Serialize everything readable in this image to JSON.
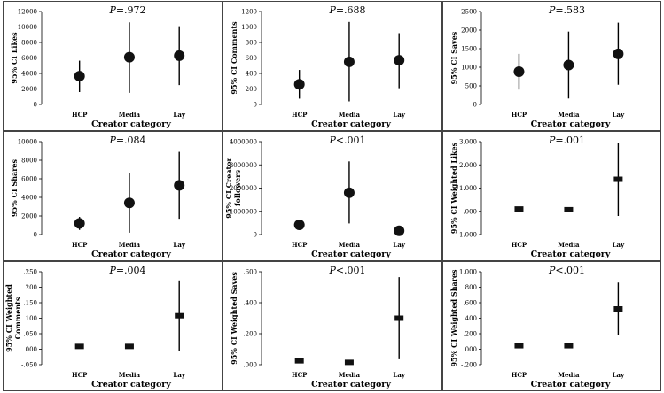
{
  "figure": {
    "layout": "3x3 grid",
    "marker_style_by_panel": [
      "circle",
      "circle",
      "circle",
      "circle",
      "circle",
      "square",
      "square",
      "square",
      "square"
    ]
  },
  "chart_data": [
    {
      "type": "errorbar",
      "p_prefix": "P",
      "p_suffix": "=.972",
      "ylabel": "95% CI Likes",
      "xlabel": "Creator category",
      "categories": [
        "HCP",
        "Media",
        "Lay"
      ],
      "ylim": [
        0,
        12000
      ],
      "yticks": [
        "0",
        "2000",
        "4000",
        "6000",
        "8000",
        "10000",
        "12000"
      ],
      "ytick_values": [
        0,
        2000,
        4000,
        6000,
        8000,
        10000,
        12000
      ],
      "means": [
        3650,
        6100,
        6300
      ],
      "lower": [
        1600,
        1500,
        2500
      ],
      "upper": [
        5650,
        10600,
        10100
      ]
    },
    {
      "type": "errorbar",
      "p_prefix": "P",
      "p_suffix": "=.688",
      "ylabel": "95% CI Comments",
      "xlabel": "Creator category",
      "categories": [
        "HCP",
        "Media",
        "Lay"
      ],
      "ylim": [
        0,
        1200
      ],
      "yticks": [
        "0",
        "200",
        "400",
        "600",
        "800",
        "1000",
        "1200"
      ],
      "ytick_values": [
        0,
        200,
        400,
        600,
        800,
        1000,
        1200
      ],
      "means": [
        260,
        550,
        570
      ],
      "lower": [
        75,
        40,
        210
      ],
      "upper": [
        445,
        1065,
        920
      ]
    },
    {
      "type": "errorbar",
      "p_prefix": "P",
      "p_suffix": "=.583",
      "ylabel": "95% CI Saves",
      "xlabel": "Creator category",
      "categories": [
        "HCP",
        "Media",
        "Lay"
      ],
      "ylim": [
        0,
        2500
      ],
      "yticks": [
        "0",
        "500",
        "1000",
        "1500",
        "2000",
        "2500"
      ],
      "ytick_values": [
        0,
        500,
        1000,
        1500,
        2000,
        2500
      ],
      "means": [
        880,
        1060,
        1360
      ],
      "lower": [
        400,
        160,
        530
      ],
      "upper": [
        1360,
        1960,
        2200
      ]
    },
    {
      "type": "errorbar",
      "p_prefix": "P",
      "p_suffix": "=.084",
      "ylabel": "95% CI Shares",
      "xlabel": "Creator category",
      "categories": [
        "HCP",
        "Media",
        "Lay"
      ],
      "ylim": [
        0,
        10000
      ],
      "yticks": [
        "0",
        "2000",
        "4000",
        "6000",
        "8000",
        "10000"
      ],
      "ytick_values": [
        0,
        2000,
        4000,
        6000,
        8000,
        10000
      ],
      "means": [
        1200,
        3400,
        5300
      ],
      "lower": [
        500,
        200,
        1700
      ],
      "upper": [
        1900,
        6600,
        8900
      ]
    },
    {
      "type": "errorbar",
      "p_prefix": "P",
      "p_suffix": "<.001",
      "ylabel": "95% CI Creator followers",
      "xlabel": "Creator category",
      "categories": [
        "HCP",
        "Media",
        "Lay"
      ],
      "ylim": [
        0,
        4000000
      ],
      "yticks": [
        "0",
        "1000000",
        "2000000",
        "3000000",
        "4000000"
      ],
      "ytick_values": [
        0,
        1000000,
        2000000,
        3000000,
        4000000
      ],
      "means": [
        420000,
        1800000,
        160000
      ],
      "lower": [
        280000,
        480000,
        90000
      ],
      "upper": [
        560000,
        3150000,
        230000
      ]
    },
    {
      "type": "errorbar",
      "p_prefix": "P",
      "p_suffix": "=.001",
      "ylabel": "95% CI Weighted Likes",
      "xlabel": "Creator category",
      "categories": [
        "HCP",
        "Media",
        "Lay"
      ],
      "ylim": [
        -1,
        3
      ],
      "yticks": [
        "-1.000",
        ".000",
        "1.000",
        "2.000",
        "3.000"
      ],
      "ytick_values": [
        -1,
        0,
        1,
        2,
        3
      ],
      "means": [
        0.1,
        0.07,
        1.38
      ],
      "lower": [
        0.06,
        0.03,
        -0.2
      ],
      "upper": [
        0.14,
        0.11,
        2.95
      ]
    },
    {
      "type": "errorbar",
      "p_prefix": "P",
      "p_suffix": "=.004",
      "ylabel": "95% CI Weighted Comments",
      "xlabel": "Creator category",
      "categories": [
        "HCP",
        "Media",
        "Lay"
      ],
      "ylim": [
        -0.05,
        0.25
      ],
      "yticks": [
        "-.050",
        ".000",
        ".050",
        ".100",
        ".150",
        ".200",
        ".250"
      ],
      "ytick_values": [
        -0.05,
        0,
        0.05,
        0.1,
        0.15,
        0.2,
        0.25
      ],
      "means": [
        0.009,
        0.009,
        0.108
      ],
      "lower": [
        0.006,
        0.006,
        -0.005
      ],
      "upper": [
        0.012,
        0.012,
        0.222
      ]
    },
    {
      "type": "errorbar",
      "p_prefix": "P",
      "p_suffix": "<.001",
      "ylabel": "95% CI Weighted Saves",
      "xlabel": "Creator category",
      "categories": [
        "HCP",
        "Media",
        "Lay"
      ],
      "ylim": [
        0,
        0.6
      ],
      "yticks": [
        ".000",
        ".200",
        ".400",
        ".600"
      ],
      "ytick_values": [
        0,
        0.2,
        0.4,
        0.6
      ],
      "means": [
        0.025,
        0.015,
        0.3
      ],
      "lower": [
        0.02,
        0.01,
        0.035
      ],
      "upper": [
        0.03,
        0.02,
        0.565
      ]
    },
    {
      "type": "errorbar",
      "p_prefix": "P",
      "p_suffix": "<.001",
      "ylabel": "95% CI Weighted Shares",
      "xlabel": "Creator category",
      "categories": [
        "HCP",
        "Media",
        "Lay"
      ],
      "ylim": [
        -0.2,
        1.0
      ],
      "yticks": [
        "-.200",
        ".000",
        ".200",
        ".400",
        ".600",
        ".800",
        "1.000"
      ],
      "ytick_values": [
        -0.2,
        0,
        0.2,
        0.4,
        0.6,
        0.8,
        1.0
      ],
      "means": [
        0.045,
        0.045,
        0.52
      ],
      "lower": [
        0.03,
        0.03,
        0.18
      ],
      "upper": [
        0.06,
        0.06,
        0.86
      ]
    }
  ]
}
